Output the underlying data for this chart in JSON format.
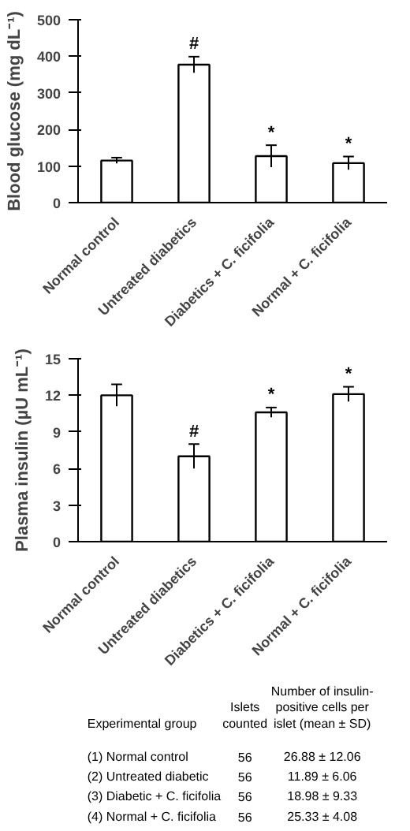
{
  "chart_data": [
    {
      "type": "bar",
      "ylabel": "Blood glucose (mg dL⁻¹)",
      "categories": [
        "Normal control",
        "Untreated diabetics",
        "Diabetics + C. ficifolia",
        "Normal + C. ficifolia"
      ],
      "values": [
        115,
        377,
        127,
        108
      ],
      "errors": [
        8,
        22,
        30,
        18
      ],
      "value_labels": [
        null,
        "#",
        "*",
        "*"
      ],
      "color": "#ffffff",
      "ylim": [
        0,
        500
      ],
      "yticks": [
        0,
        100,
        200,
        300,
        400,
        500
      ],
      "grid": false
    },
    {
      "type": "bar",
      "ylabel": "Plasma insulin (µU mL⁻¹)",
      "categories": [
        "Normal control",
        "Untreated diabetics",
        "Diabetics + C. ficifolia",
        "Normal + C. ficifolia"
      ],
      "values": [
        12,
        7,
        10.6,
        12.1
      ],
      "errors": [
        0.9,
        1.0,
        0.4,
        0.6
      ],
      "value_labels": [
        null,
        "#",
        "*",
        "*"
      ],
      "color": "#ffffff",
      "ylim": [
        0,
        15
      ],
      "yticks": [
        0,
        3,
        6,
        9,
        12,
        15
      ],
      "grid": false
    },
    {
      "type": "other",
      "annotations": [
        "Experimental group",
        "Islets\ncounted",
        "Number of insulin-\npositive cells per\nislet (mean ± SD)",
        "(1) Normal control",
        "56",
        "26.88 ± 12.06",
        "(2) Untreated diabetic",
        "56",
        "11.89 ± 6.06",
        "(3) Diabetic + C. ficifolia",
        "56",
        "18.98 ± 9.33",
        "(4) Normal + C. ficifolia",
        "56",
        "25.33 ± 4.08"
      ]
    }
  ]
}
